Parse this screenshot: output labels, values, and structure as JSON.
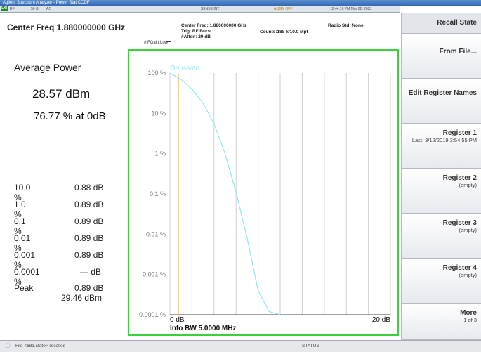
{
  "window": {
    "title": "Agilent Spectrum Analyzer - Power Stat CCDF"
  },
  "status": {
    "segments": [
      "RF",
      "50 Ω",
      "AC"
    ],
    "sense": "SENSE:INT",
    "align": "ALIGN OFF",
    "timestamp": "12:44:16 PM Mar 22, 2023"
  },
  "header": {
    "center_freq": "Center Freq 1.880000000 GHz",
    "gain_label": "#IFGain:Low",
    "trig_lines": [
      "Center Freq: 1.880000000 GHz",
      "Trig: RF Burst",
      "#Atten: 20 dB"
    ],
    "counts": "Counts:188 k/10.0 Mpt",
    "radio_std": "Radio Std: None"
  },
  "results": {
    "title": "Average Power",
    "avg_dbm": "28.57 dBm",
    "avg_pct": "76.77 % at 0dB",
    "rows": [
      {
        "pct": "10.0 %",
        "val": "0.88 dB"
      },
      {
        "pct": "1.0 %",
        "val": "0.89 dB"
      },
      {
        "pct": "0.1 %",
        "val": "0.89 dB"
      },
      {
        "pct": "0.01 %",
        "val": "0.89 dB"
      },
      {
        "pct": "0.001 %",
        "val": "0.89 dB"
      },
      {
        "pct": "0.0001 %",
        "val": "— dB"
      },
      {
        "pct": "Peak",
        "val": "0.89 dB"
      }
    ],
    "peak_dbm": "29.46 dBm"
  },
  "chart_data": {
    "type": "line",
    "series": [
      {
        "name": "Gaussian",
        "x": [
          0,
          1,
          2,
          3,
          4,
          5,
          6,
          7,
          8,
          9,
          10
        ],
        "y": [
          100,
          70,
          40,
          18,
          5.5,
          1.0,
          0.11,
          0.008,
          0.0004,
          0.00012,
          0.0001
        ]
      }
    ],
    "y_tick_labels": [
      "100 %",
      "10 %",
      "1 %",
      "0.1 %",
      "0.01 %",
      "0.001 %",
      "0.0001 %"
    ],
    "x_tick_labels": [
      "0 dB",
      "20 dB"
    ],
    "info_bw": "Info BW 5.0000 MHz",
    "xlim": [
      0,
      20
    ],
    "ylim_log": [
      0.0001,
      100
    ],
    "grid": true,
    "colors": {
      "gaussian": "#8fe8ea",
      "frame": "#3bd13b",
      "marker": "#e8b84a"
    }
  },
  "softkeys": {
    "header": "Recall State",
    "items": [
      {
        "label": "From File...",
        "sub": ""
      },
      {
        "label": "Edit Register Names",
        "sub": ""
      },
      {
        "label": "Register 1",
        "sub": "Last: 3/12/2019 3:54:55 PM"
      },
      {
        "label": "Register 2",
        "sub": "(empty)"
      },
      {
        "label": "Register 3",
        "sub": "(empty)"
      },
      {
        "label": "Register 4",
        "sub": "(empty)"
      },
      {
        "label": "More",
        "sub": "1 of 3"
      }
    ]
  },
  "footer": {
    "message": "File <681.state> recalled",
    "status": "STATUS"
  }
}
